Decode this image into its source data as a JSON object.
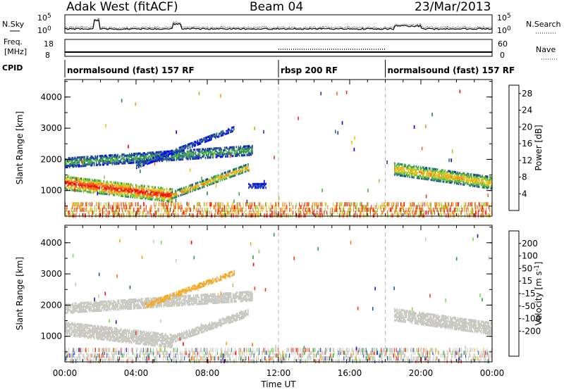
{
  "header": {
    "station": "Adak West (fitACF)",
    "beam": "Beam 04",
    "date": "23/Mar/2013"
  },
  "noise_panel": {
    "left_label": "N.Sky",
    "right_label": "N.Search",
    "tick_top": "10^5",
    "tick_bottom": "10^0",
    "right_tick_top": "10^5",
    "right_tick_bottom": "10^0"
  },
  "freq_panel": {
    "label_line1": "Freq.",
    "label_line2": "[MHz]",
    "tick_top": "18",
    "tick_bottom": "8",
    "right_label": "Nave",
    "right_tick_top": "60",
    "right_tick_bottom": "0"
  },
  "cpid_panel": {
    "label": "CPID",
    "segments": [
      {
        "start": "00:00",
        "end": "12:00",
        "text": "normalsound (fast) 157 RF"
      },
      {
        "start": "12:00",
        "end": "18:00",
        "text": "rbsp 200 RF"
      },
      {
        "start": "18:00",
        "end": "24:00",
        "text": "normalsound (fast) 157 RF"
      }
    ]
  },
  "x_axis": {
    "label": "Time UT",
    "ticks": [
      "00:00",
      "04:00",
      "08:00",
      "12:00",
      "16:00",
      "20:00",
      "00:00"
    ]
  },
  "colors": {
    "power_scale": [
      "#0000ff",
      "#1c3ca8",
      "#2d7c6a",
      "#46b04a",
      "#8fcf2a",
      "#e8c820",
      "#f89a18",
      "#f26a14",
      "#e83412",
      "#ff0000"
    ],
    "velocity_scale": [
      "#1a1ac0",
      "#1e5aa0",
      "#26a050",
      "#7cdc3c",
      "#c8c8c0",
      "#c8c8c0",
      "#f8a81c",
      "#f87418",
      "#f03c12",
      "#ff0000"
    ]
  },
  "chart_data": [
    {
      "type": "heatmap",
      "name": "power",
      "ylabel": "Slant Range [km]",
      "xlabel": "Time UT",
      "x_range_hours": [
        0,
        24
      ],
      "ylim": [
        180,
        4560
      ],
      "yticks": [
        "1000",
        "2000",
        "3000",
        "4000"
      ],
      "colorbar": {
        "label": "Power [dB]",
        "ticks": [
          "4",
          "8",
          "12",
          "16",
          "20",
          "24",
          "28"
        ],
        "range": [
          0,
          30
        ]
      },
      "features": [
        {
          "kind": "band",
          "t_start": 0.0,
          "t_end": 6.0,
          "range_start_km": 1250,
          "range_end_km": 850,
          "width_km": 420,
          "value_db": 26
        },
        {
          "kind": "band",
          "t_start": 6.0,
          "t_end": 10.3,
          "range_start_km": 850,
          "range_end_km": 1750,
          "width_km": 200,
          "value_db": 20
        },
        {
          "kind": "band",
          "t_start": 0.0,
          "t_end": 10.5,
          "range_start_km": 1900,
          "range_end_km": 2300,
          "width_km": 300,
          "value_db": 10
        },
        {
          "kind": "band",
          "t_start": 4.0,
          "t_end": 9.5,
          "range_start_km": 1800,
          "range_end_km": 3000,
          "width_km": 150,
          "value_db": 6
        },
        {
          "kind": "band",
          "t_start": 18.5,
          "t_end": 24.0,
          "range_start_km": 1700,
          "range_end_km": 1250,
          "width_km": 380,
          "value_db": 18
        },
        {
          "kind": "band",
          "t_start": 10.3,
          "t_end": 11.3,
          "range_start_km": 1150,
          "range_end_km": 1150,
          "width_km": 120,
          "value_db": 5
        },
        {
          "kind": "ground_noise",
          "t_start": 0.0,
          "t_end": 24.0,
          "range_start_km": 200,
          "range_end_km": 600,
          "value_db": 20
        }
      ]
    },
    {
      "type": "heatmap",
      "name": "velocity",
      "ylabel": "Slant Range [km]",
      "xlabel": "Time UT",
      "x_range_hours": [
        0,
        24
      ],
      "ylim": [
        180,
        4560
      ],
      "yticks": [
        "1000",
        "2000",
        "3000",
        "4000"
      ],
      "colorbar": {
        "label": "Velocity [m s^-1]",
        "ticks": [
          "200",
          "100",
          "50",
          "15",
          "-15",
          "-50",
          "-100",
          "-200"
        ],
        "range": [
          -250,
          250
        ]
      },
      "features": [
        {
          "kind": "band",
          "t_start": 0.0,
          "t_end": 6.0,
          "range_start_km": 1250,
          "range_end_km": 850,
          "width_km": 420,
          "value_ms": 0
        },
        {
          "kind": "band",
          "t_start": 0.0,
          "t_end": 10.5,
          "range_start_km": 1900,
          "range_end_km": 2300,
          "width_km": 300,
          "value_ms": 0
        },
        {
          "kind": "band",
          "t_start": 4.5,
          "t_end": 9.5,
          "range_start_km": 2000,
          "range_end_km": 3050,
          "width_km": 150,
          "value_ms": -60
        },
        {
          "kind": "band",
          "t_start": 6.0,
          "t_end": 10.3,
          "range_start_km": 900,
          "range_end_km": 1750,
          "width_km": 200,
          "value_ms": 0
        },
        {
          "kind": "band",
          "t_start": 18.5,
          "t_end": 24.0,
          "range_start_km": 1700,
          "range_end_km": 1250,
          "width_km": 380,
          "value_ms": 0
        },
        {
          "kind": "ground_noise",
          "t_start": 0.0,
          "t_end": 24.0,
          "range_start_km": 200,
          "range_end_km": 600,
          "value_ms": 0
        }
      ]
    }
  ]
}
